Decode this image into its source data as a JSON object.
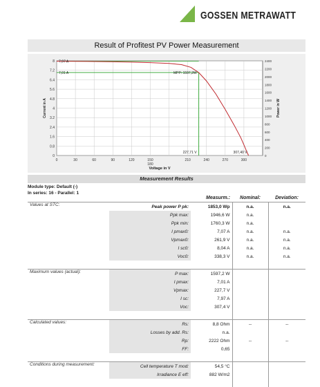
{
  "header": {
    "brand": "GOSSEN METRAWATT",
    "title": "Result of Profitest PV Power Measurement"
  },
  "chart_data": {
    "type": "line",
    "title": "",
    "xlabel": "Voltage in V",
    "ylabel_left": "Current in A",
    "ylabel_right": "Power in W",
    "x_ticks": [
      0,
      30,
      60,
      90,
      120,
      150,
      180,
      210,
      240,
      270,
      300
    ],
    "x_tick_labels": [
      "0",
      "30",
      "60",
      "90",
      "120",
      "150\n180",
      "",
      "210",
      "240",
      "270",
      "300"
    ],
    "y_left_ticks": [
      0,
      0.8,
      1.6,
      2.4,
      3.2,
      4,
      4.8,
      5.6,
      6.4,
      7.2,
      8
    ],
    "y_left_tick_labels": [
      "0",
      "0.8",
      "1.6",
      "2.4",
      "3.2",
      "4",
      "4.8",
      "5.6",
      "6.4",
      "7.2",
      "8"
    ],
    "y_right_ticks": [
      0,
      200,
      400,
      600,
      800,
      1000,
      1200,
      1400,
      1600,
      1800,
      2000,
      2200,
      2400
    ],
    "xlim": [
      0,
      330
    ],
    "ylim_left": [
      0,
      8
    ],
    "ylim_right": [
      0,
      2400
    ],
    "grid": true,
    "series": [
      {
        "name": "",
        "axis": "left",
        "color": "#c0282d",
        "x": [
          0,
          30,
          60,
          90,
          120,
          150,
          180,
          200,
          215,
          227.7,
          240,
          255,
          270,
          285,
          295,
          300,
          304,
          307.4
        ],
        "y": [
          7.97,
          7.96,
          7.94,
          7.92,
          7.89,
          7.85,
          7.78,
          7.68,
          7.45,
          7.01,
          6.3,
          5.2,
          3.9,
          2.5,
          1.5,
          0.9,
          0.4,
          0
        ]
      }
    ],
    "markers": {
      "isc_label": "7,97 A",
      "isc_value": 7.97,
      "imp_label": "7,01 A",
      "imp_value": 7.01,
      "mpp_label": "MPP: 1597,2W",
      "vmp_label": "227,71 V",
      "vmp_value": 227.7,
      "voc_label": "307,40 V",
      "voc_value": 307.4,
      "marker_color": "#2aa22a"
    }
  },
  "results": {
    "bar_title": "Measurement Results",
    "module_type": "Module type: Default (-)",
    "series_info": "In series: 16  -  Parallel: 1",
    "col_measured": "Measurm.:",
    "col_nominal": "Nominal:",
    "col_deviation": "Deviation:",
    "stc": {
      "label": "Values at STC:",
      "rows": [
        {
          "name": "Peak power P pk:",
          "value": "1853,0 Wp",
          "nominal": "n.a.",
          "deviation": "n.a."
        },
        {
          "name": "Ppk max:",
          "value": "1946,6 W",
          "nominal": "n.a.",
          "deviation": ""
        },
        {
          "name": "Ppk min:",
          "value": "1760,3 W",
          "nominal": "n.a.",
          "deviation": ""
        },
        {
          "name": "I pmax0:",
          "value": "7,07 A",
          "nominal": "n.a.",
          "deviation": "n.a."
        },
        {
          "name": "Vpmax0:",
          "value": "261,9 V",
          "nominal": "n.a.",
          "deviation": "n.a."
        },
        {
          "name": "I sc0:",
          "value": "8,04 A",
          "nominal": "n.a.",
          "deviation": "n.a."
        },
        {
          "name": "Voc0:",
          "value": "338,3 V",
          "nominal": "n.a.",
          "deviation": "n.a."
        }
      ]
    },
    "actual": {
      "label": "Maximum values (actual):",
      "rows": [
        {
          "name": "P max:",
          "value": "1597,2 W"
        },
        {
          "name": "I pmax:",
          "value": "7,01 A"
        },
        {
          "name": "Vpmax:",
          "value": "227,7 V"
        },
        {
          "name": "I sc:",
          "value": "7,97 A"
        },
        {
          "name": "Voc:",
          "value": "307,4 V"
        }
      ]
    },
    "calc": {
      "label": "Calculated values:",
      "rows": [
        {
          "name": "Rs:",
          "value": "8,8 Ohm",
          "nominal": "--",
          "deviation": "--"
        },
        {
          "name": "Losses by add. Rs:",
          "value": "n.a.",
          "nominal": "",
          "deviation": ""
        },
        {
          "name": "Rp:",
          "value": "2222 Ohm",
          "nominal": "--",
          "deviation": "--"
        },
        {
          "name": "FF:",
          "value": "0,65",
          "nominal": "",
          "deviation": ""
        }
      ]
    },
    "conditions": {
      "label": "Conditions during measurement:",
      "rows": [
        {
          "name": "Cell temperature T mod:",
          "value": "54,5 °C"
        },
        {
          "name": "Irradiance E eff:",
          "value": "882 W/m2"
        }
      ]
    }
  }
}
